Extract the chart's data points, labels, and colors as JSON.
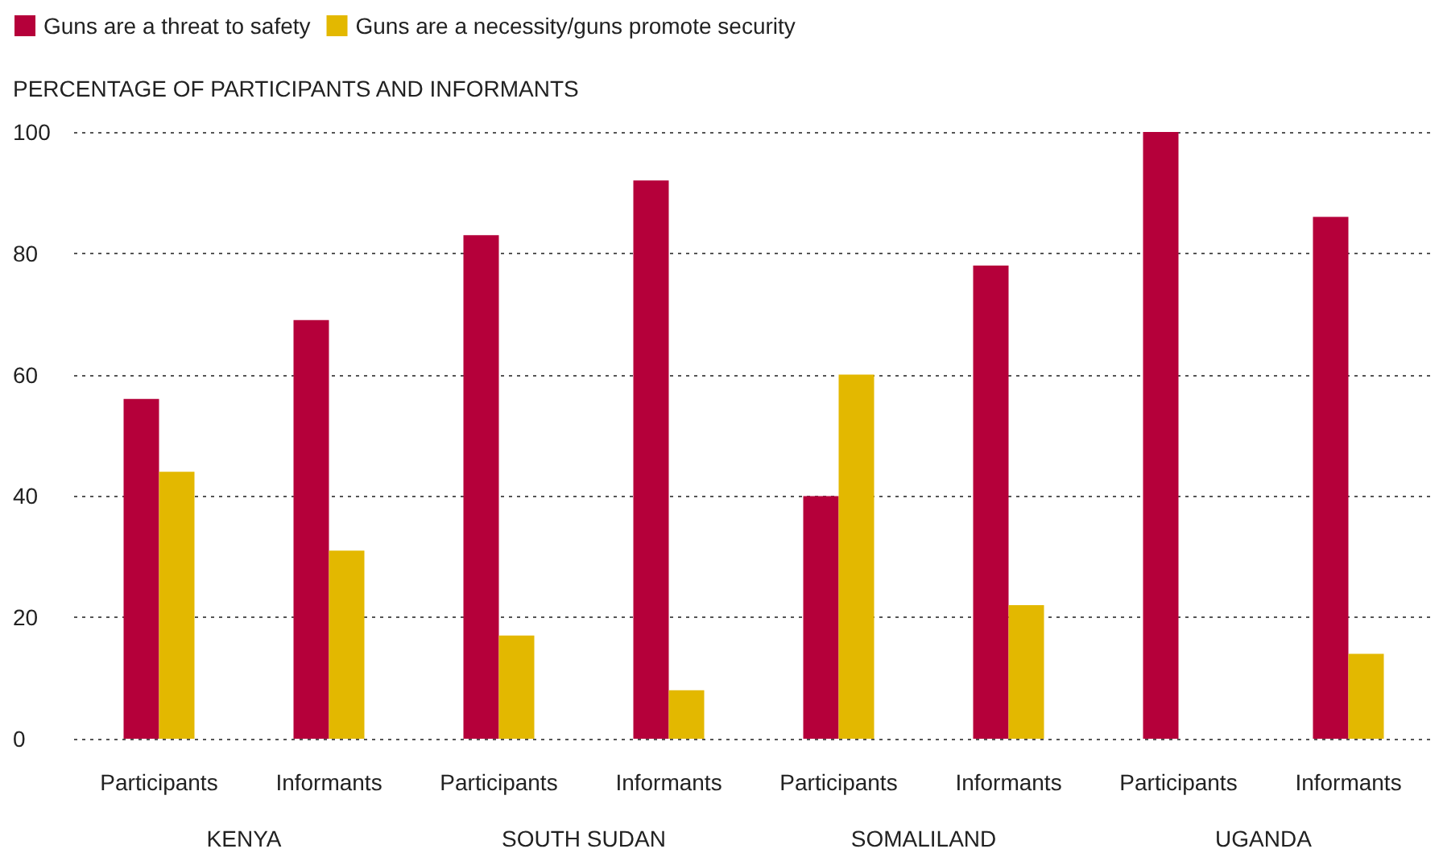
{
  "chart_data": {
    "type": "bar",
    "ylabel": "PERCENTAGE OF PARTICIPANTS AND INFORMANTS",
    "categories": [
      "Participants",
      "Informants",
      "Participants",
      "Informants",
      "Participants",
      "Informants",
      "Participants",
      "Informants"
    ],
    "series": [
      {
        "name": "Guns are a threat to safety",
        "color": "#b5003a",
        "values": [
          56,
          69,
          83,
          92,
          40,
          78,
          100,
          86
        ]
      },
      {
        "name": "Guns are a necessity/guns promote security",
        "color": "#e3b800",
        "values": [
          44,
          31,
          17,
          8,
          60,
          22,
          0,
          14
        ]
      }
    ],
    "annotations": [
      "KENYA",
      "SOUTH SUDAN",
      "SOMALILAND",
      "UGANDA"
    ],
    "ylim": [
      0,
      100
    ],
    "yticks": [
      0,
      20,
      40,
      60,
      80,
      100
    ],
    "grid": "y",
    "legend": "top left"
  }
}
